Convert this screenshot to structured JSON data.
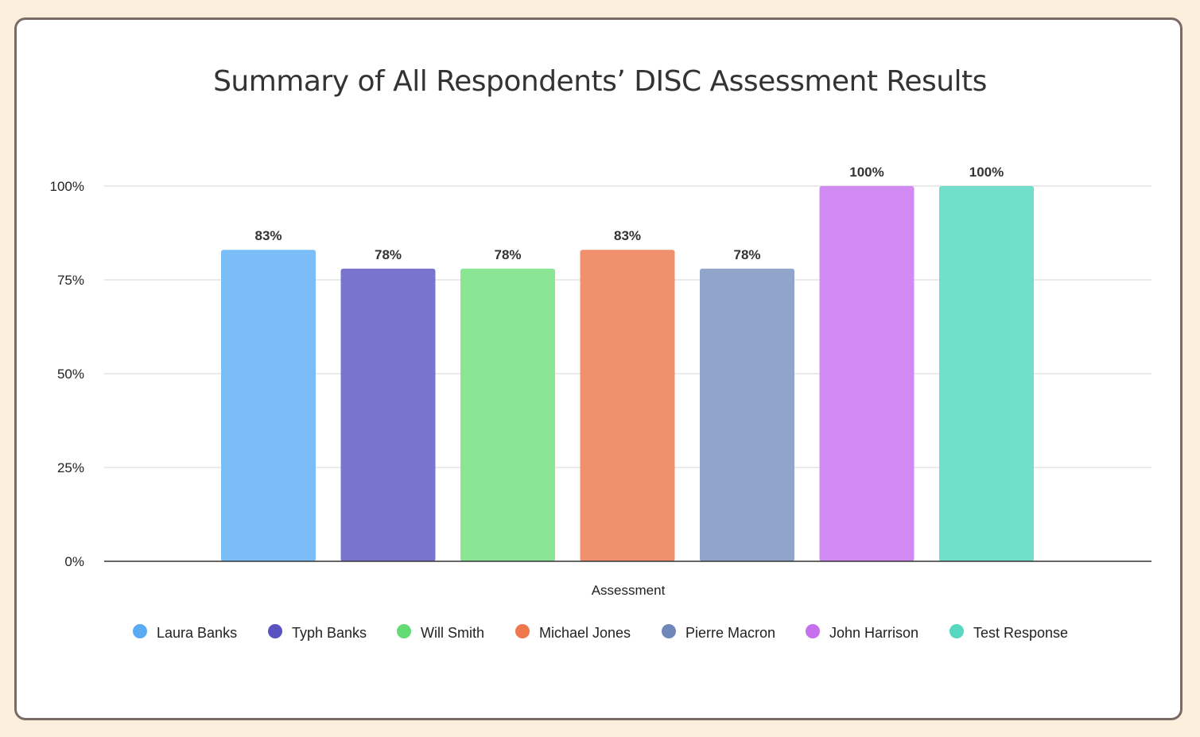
{
  "chart_data": {
    "type": "bar",
    "title": "Summary of All Respondents’ DISC Assessment Results",
    "xlabel": "Assessment",
    "ylabel": "",
    "categories": [
      "Assessment"
    ],
    "ylim": [
      0,
      100
    ],
    "yticks": [
      "0%",
      "25%",
      "50%",
      "75%",
      "100%"
    ],
    "ytick_values": [
      0,
      25,
      50,
      75,
      100
    ],
    "grid": true,
    "legend": "bottom",
    "series": [
      {
        "name": "Laura Banks",
        "value": 83,
        "label": "83%",
        "color": "#7bbdf7",
        "legend_color": "#5aabf3"
      },
      {
        "name": "Typh Banks",
        "value": 78,
        "label": "78%",
        "color": "#7975ce",
        "legend_color": "#5a52c0"
      },
      {
        "name": "Will Smith",
        "value": 78,
        "label": "78%",
        "color": "#8ae594",
        "legend_color": "#62db72"
      },
      {
        "name": "Michael Jones",
        "value": 83,
        "label": "83%",
        "color": "#f0906d",
        "legend_color": "#ee774c"
      },
      {
        "name": "Pierre Macron",
        "value": 78,
        "label": "78%",
        "color": "#91a4ca",
        "legend_color": "#7088b9"
      },
      {
        "name": "John Harrison",
        "value": 100,
        "label": "100%",
        "color": "#d28af3",
        "legend_color": "#c670f0"
      },
      {
        "name": "Test Response",
        "value": 100,
        "label": "100%",
        "color": "#72dfcb",
        "legend_color": "#56d7c0"
      }
    ]
  }
}
